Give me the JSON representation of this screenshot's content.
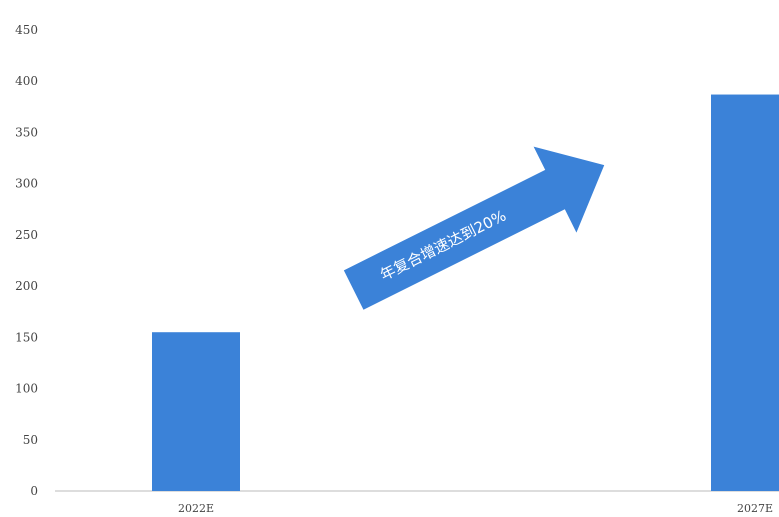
{
  "chart_data": {
    "type": "bar",
    "categories": [
      "2022E",
      "2027E"
    ],
    "values": [
      155,
      387
    ],
    "ylim": [
      0,
      450
    ],
    "yticks": [
      0,
      50,
      100,
      150,
      200,
      250,
      300,
      350,
      400,
      450
    ],
    "grid": false,
    "annotation": "年复合增速达到20%",
    "colors": {
      "bar": "#3b82d8",
      "arrow": "#3b82d8",
      "axis": "#bbbbbb",
      "text": "#444444"
    }
  }
}
